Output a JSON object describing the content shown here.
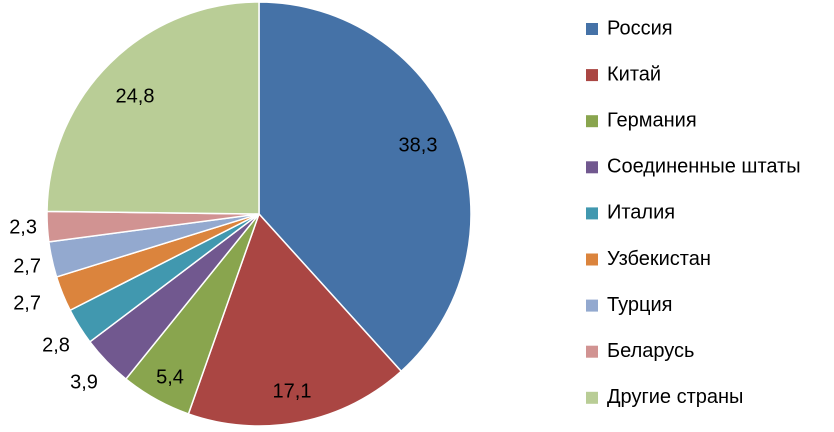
{
  "chart_data": {
    "type": "pie",
    "categories": [
      "Россия",
      "Китай",
      "Германия",
      "Соединенные штаты",
      "Италия",
      "Узбекистан",
      "Турция",
      "Беларусь",
      "Другие страны"
    ],
    "values": [
      38.3,
      17.1,
      5.4,
      3.9,
      2.8,
      2.7,
      2.7,
      2.3,
      24.8
    ],
    "data_labels": [
      "38,3",
      "17,1",
      "5,4",
      "3,9",
      "2,8",
      "2,7",
      "2,7",
      "2,3",
      "24,8"
    ],
    "colors": [
      "#4572A7",
      "#AA4643",
      "#89A54E",
      "#71588F",
      "#4198AF",
      "#DB843D",
      "#93A9CF",
      "#D19392",
      "#B9CD96"
    ],
    "title": "",
    "legend_position": "right"
  }
}
